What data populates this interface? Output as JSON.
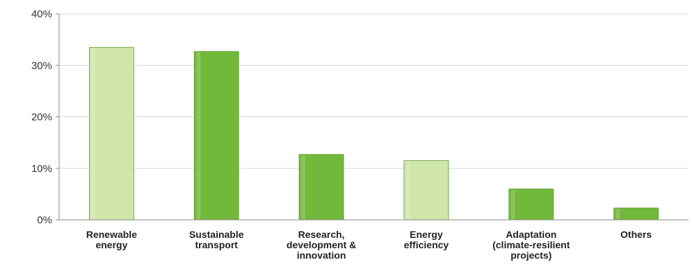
{
  "chart_data": {
    "type": "bar",
    "categories": [
      [
        "Renewable",
        "energy"
      ],
      [
        "Sustainable",
        "transport"
      ],
      [
        "Research,",
        "development &",
        "innovation"
      ],
      [
        "Energy",
        "efficiency"
      ],
      [
        "Adaptation",
        "(climate-resilient",
        "projects)"
      ],
      [
        "Others"
      ]
    ],
    "values": [
      33.5,
      32.7,
      12.7,
      11.5,
      6.0,
      2.3
    ],
    "bar_colors": [
      "#cfe6a8",
      "#72b83a",
      "#72b83a",
      "#cfe6a8",
      "#72b83a",
      "#72b83a"
    ],
    "yticks": [
      0,
      10,
      20,
      30,
      40
    ],
    "ytick_labels": [
      "0%",
      "10%",
      "20%",
      "30%",
      "40%"
    ],
    "ylim": [
      0,
      40
    ],
    "title": "",
    "xlabel": "",
    "ylabel": "",
    "grid": true
  }
}
